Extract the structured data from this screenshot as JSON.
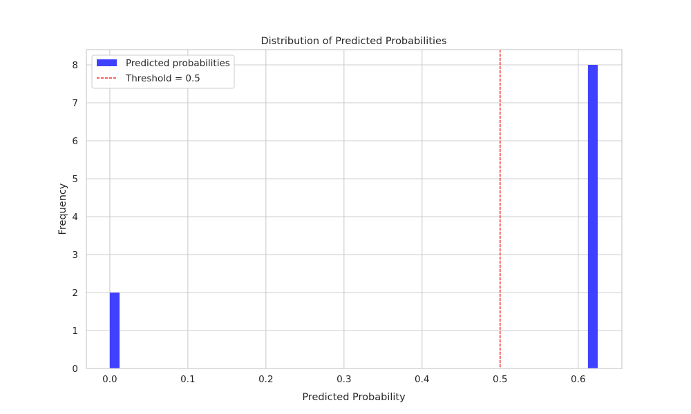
{
  "chart_data": {
    "type": "bar",
    "title": "Distribution of Predicted Probabilities",
    "xlabel": "Predicted Probability",
    "ylabel": "Frequency",
    "xlim": [
      -0.03,
      0.656
    ],
    "ylim": [
      0,
      8.4
    ],
    "xticks": [
      "0.0",
      "0.1",
      "0.2",
      "0.3",
      "0.4",
      "0.5",
      "0.6"
    ],
    "yticks": [
      "0",
      "1",
      "2",
      "3",
      "4",
      "5",
      "6",
      "7",
      "8"
    ],
    "bin_width": 0.0125,
    "series": [
      {
        "name": "Predicted probabilities",
        "color": "#4040ff",
        "bins": [
          {
            "x_start": 0.0,
            "x_end": 0.0125,
            "count": 2
          },
          {
            "x_start": 0.6125,
            "x_end": 0.625,
            "count": 8
          }
        ]
      }
    ],
    "threshold": {
      "label": "Threshold = 0.5",
      "value": 0.5,
      "color": "#ff0000",
      "style": "dashed"
    },
    "grid": true,
    "legend_position": "top-left"
  }
}
